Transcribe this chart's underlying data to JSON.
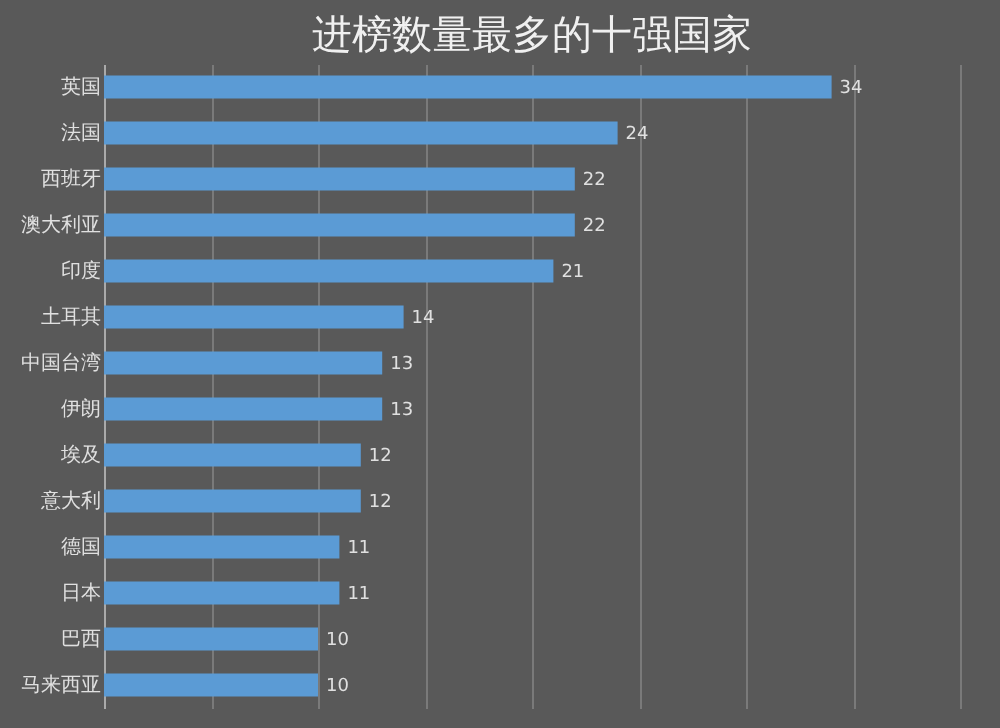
{
  "chart_data": {
    "type": "bar",
    "orientation": "horizontal",
    "title": "进榜数量最多的十强国家",
    "categories": [
      "英国",
      "法国",
      "西班牙",
      "澳大利亚",
      "印度",
      "土耳其",
      "中国台湾",
      "伊朗",
      "埃及",
      "意大利",
      "德国",
      "日本",
      "巴西",
      "马来西亚"
    ],
    "values": [
      34,
      24,
      22,
      22,
      21,
      14,
      13,
      13,
      12,
      12,
      11,
      11,
      10,
      10
    ],
    "color": "#5b9bd5",
    "xlim": [
      0,
      40
    ],
    "xticks": [
      {
        "value": 0,
        "label": null
      },
      {
        "value": 5,
        "label": null
      },
      {
        "value": 10,
        "label": null
      },
      {
        "value": 15,
        "label": null
      },
      {
        "value": 20,
        "label": null
      },
      {
        "value": 25,
        "label": null
      },
      {
        "value": 30,
        "label": null
      },
      {
        "value": 35,
        "label": null
      },
      {
        "value": 40,
        "label": null
      }
    ],
    "grid": "x",
    "tick_labels": "y",
    "data_labels": true
  }
}
